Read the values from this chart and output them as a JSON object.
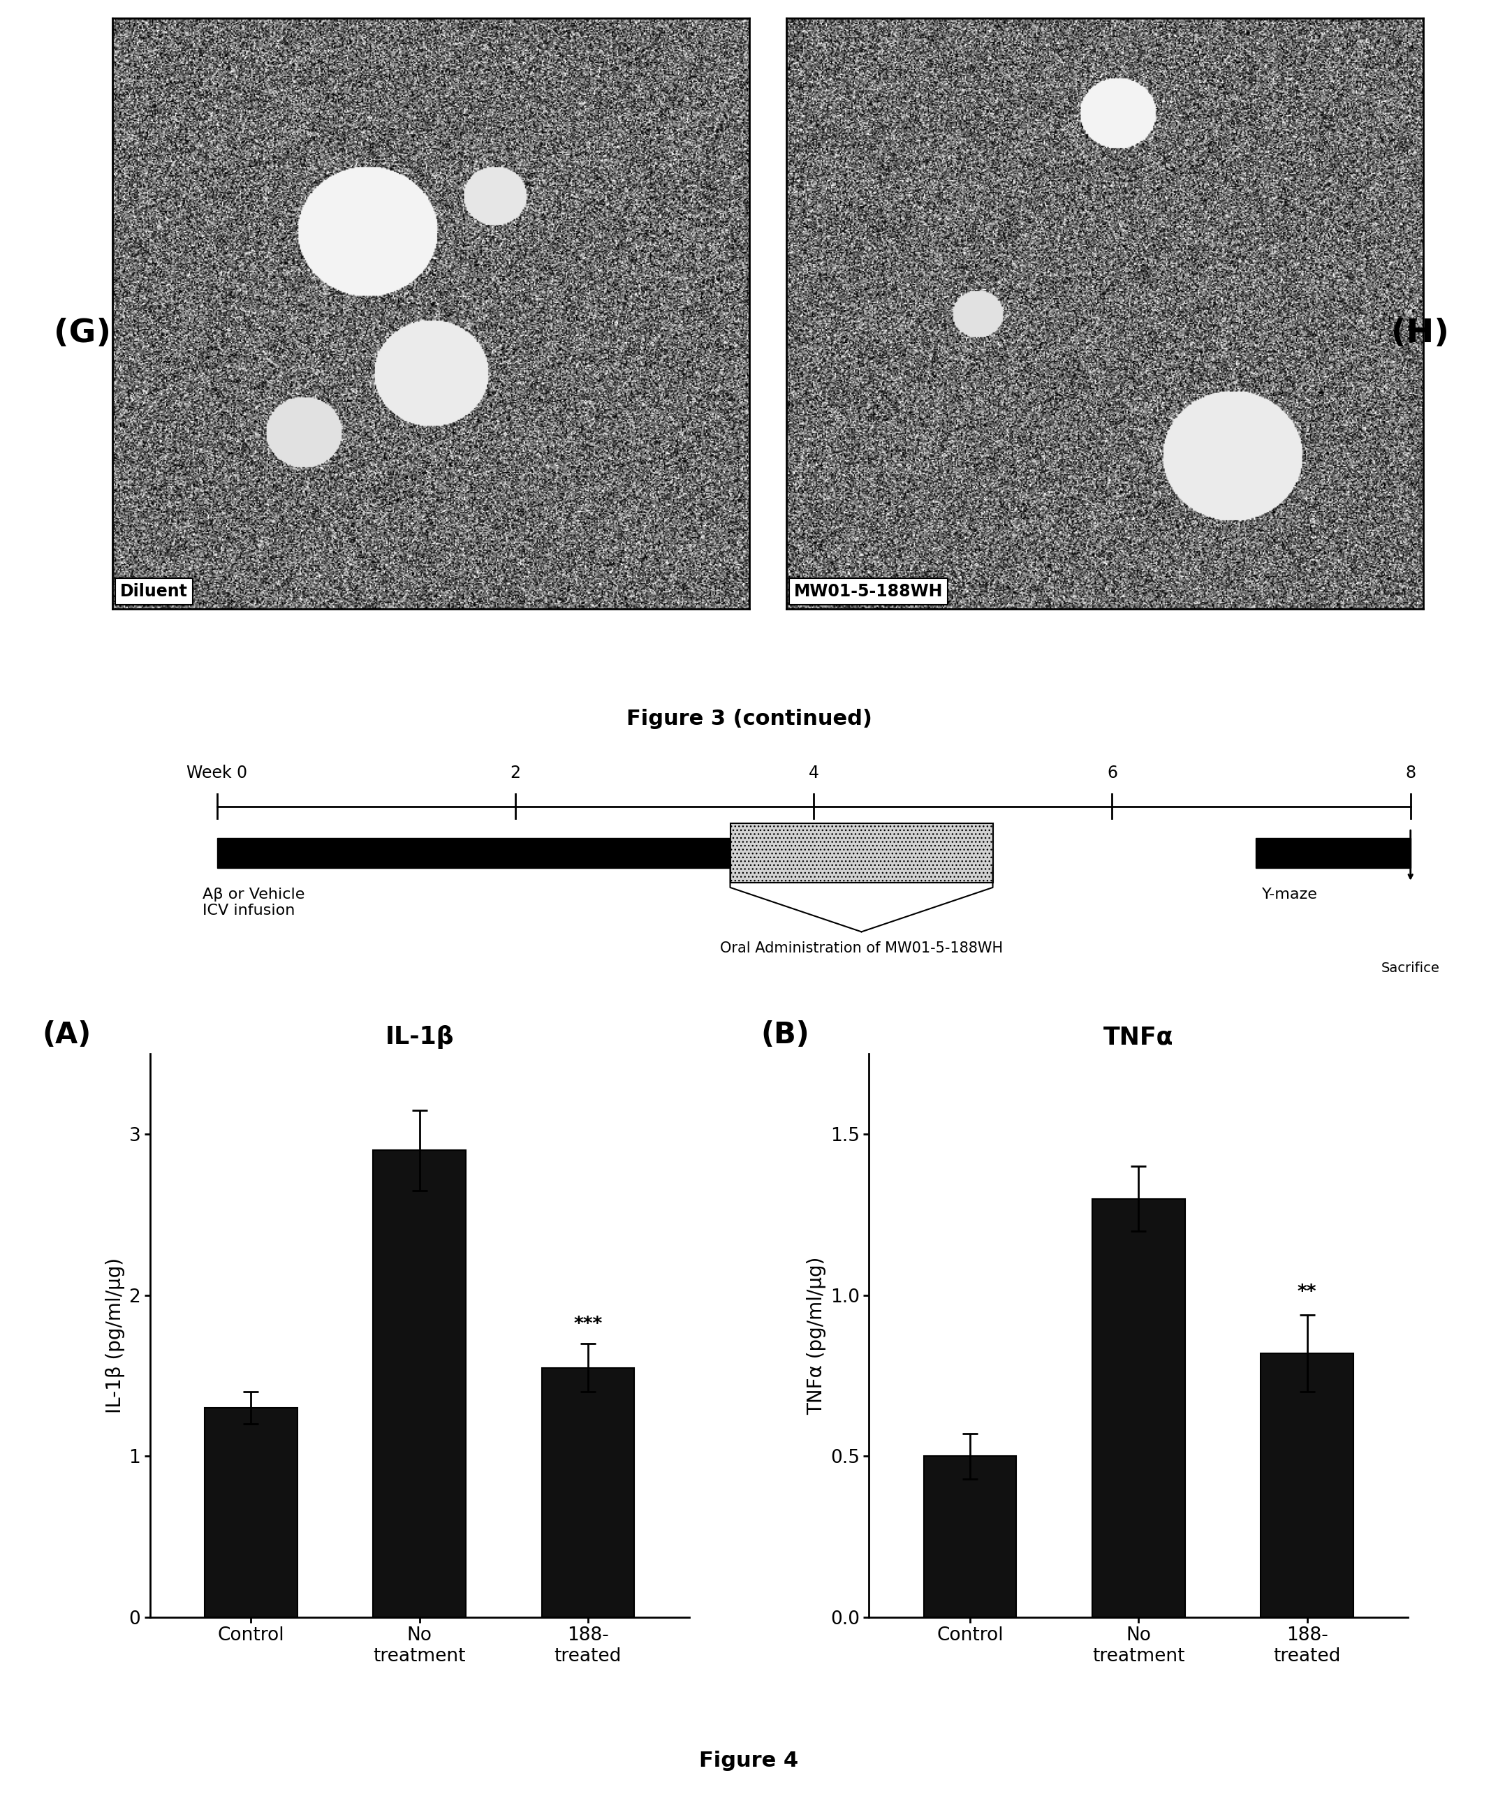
{
  "fig_width": 21.45,
  "fig_height": 26.02,
  "bg_color": "#ffffff",
  "panel_G_label": "(G)",
  "panel_H_label": "(H)",
  "diluent_label": "Diluent",
  "mw_label": "MW01-5-188WH",
  "fig3_caption": "Figure 3 (continued)",
  "week_labels": [
    "Week 0",
    "2",
    "4",
    "6",
    "8"
  ],
  "week_positions": [
    0,
    2,
    4,
    6,
    8
  ],
  "abeta_label": "Aβ or Vehicle\nICV infusion",
  "oral_label": "Oral Administration of MW01-5-188WH",
  "ymaze_label": "Y-maze",
  "sacrifice_label": "Sacrifice",
  "panel_A_title": "IL-1β",
  "panel_A_label": "(A)",
  "panel_A_ylabel": "IL-1β (pg/ml/μg)",
  "panel_A_categories": [
    "Control",
    "No\ntreatment",
    "188-\ntreated"
  ],
  "panel_A_values": [
    1.3,
    2.9,
    1.55
  ],
  "panel_A_errors": [
    0.1,
    0.25,
    0.15
  ],
  "panel_A_ylim": [
    0,
    3.5
  ],
  "panel_A_yticks": [
    0,
    1,
    2,
    3
  ],
  "panel_A_sig": [
    "",
    "",
    "***"
  ],
  "panel_A_bar_color": "#111111",
  "panel_B_title": "TNFα",
  "panel_B_label": "(B)",
  "panel_B_ylabel": "TNFα (pg/ml/μg)",
  "panel_B_categories": [
    "Control",
    "No\ntreatment",
    "188-\ntreated"
  ],
  "panel_B_values": [
    0.5,
    1.3,
    0.82
  ],
  "panel_B_errors": [
    0.07,
    0.1,
    0.12
  ],
  "panel_B_ylim": [
    0,
    1.75
  ],
  "panel_B_yticks": [
    0.0,
    0.5,
    1.0,
    1.5
  ],
  "panel_B_sig": [
    "",
    "",
    "**"
  ],
  "panel_B_bar_color": "#111111",
  "fig4_caption": "Figure 4"
}
